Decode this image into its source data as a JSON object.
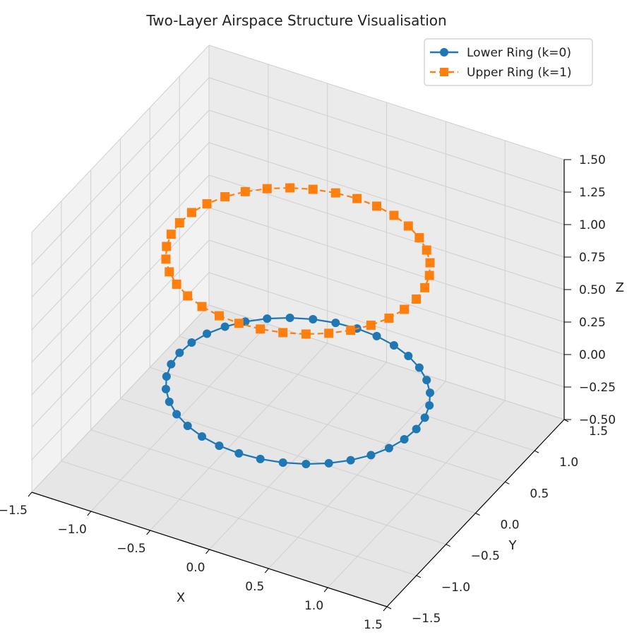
{
  "chart_data": {
    "type": "scatter",
    "title": "Two-Layer Airspace Structure Visualisation",
    "xlabel": "X",
    "ylabel": "Y",
    "zlabel": "Z",
    "xlim": [
      -1.5,
      1.5
    ],
    "ylim": [
      -1.5,
      1.5
    ],
    "zlim": [
      -0.5,
      1.5
    ],
    "x_ticks": [
      "−1.5",
      "−1.0",
      "−0.5",
      "0.0",
      "0.5",
      "1.0",
      "1.5"
    ],
    "y_ticks": [
      "−1.5",
      "−1.0",
      "−0.5",
      "0.0",
      "0.5",
      "1.0",
      "1.5"
    ],
    "z_ticks": [
      "−0.50",
      "−0.25",
      "0.00",
      "0.25",
      "0.50",
      "0.75",
      "1.00",
      "1.25",
      "1.50"
    ],
    "grid": true,
    "legend_position": "top-right",
    "series": [
      {
        "name": "Lower Ring (k=0)",
        "radius": 1.0,
        "z": 0.0,
        "n_points": 36,
        "marker": "circle",
        "line": "solid",
        "color": "#1f77b4"
      },
      {
        "name": "Upper Ring (k=1)",
        "radius": 1.0,
        "z": 1.0,
        "n_points": 36,
        "marker": "square",
        "line": "dashed",
        "color": "#ff7f0e"
      }
    ]
  }
}
